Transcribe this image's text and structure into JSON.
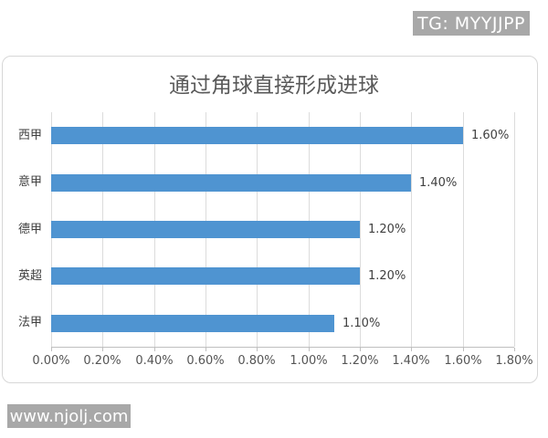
{
  "watermark_top": {
    "label": "TG: MYYJJPP",
    "bg": "#a8a8a8",
    "fg": "#ffffff"
  },
  "watermark_bottom": {
    "label": "www.njolj.com",
    "bg": "#a8a8a8",
    "fg": "#ffffff"
  },
  "chart_data": {
    "type": "bar",
    "orientation": "horizontal",
    "title": "通过角球直接形成进球",
    "categories": [
      "西甲",
      "意甲",
      "德甲",
      "英超",
      "法甲"
    ],
    "values": [
      1.6,
      1.4,
      1.2,
      1.2,
      1.1
    ],
    "value_labels": [
      "1.60%",
      "1.40%",
      "1.20%",
      "1.20%",
      "1.10%"
    ],
    "x_ticks": [
      "0.00%",
      "0.20%",
      "0.40%",
      "0.60%",
      "0.80%",
      "1.00%",
      "1.20%",
      "1.40%",
      "1.60%",
      "1.80%"
    ],
    "xlim": [
      0,
      1.8
    ],
    "xlabel": "",
    "ylabel": "",
    "grid": true,
    "legend": "none",
    "bar_color": "#4f94d1",
    "gridline_color": "#dcdcdc",
    "axis_color": "#bfbfbf",
    "title_color": "#595959",
    "label_color": "#404040"
  }
}
